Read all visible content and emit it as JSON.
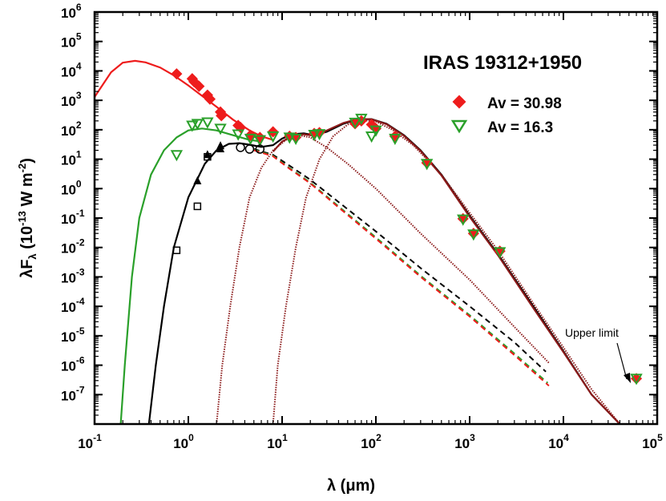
{
  "chart_data": {
    "type": "scatter",
    "title": "IRAS 19312+1950",
    "xlabel": {
      "main": "λ (",
      "mu": "μ",
      "unit": "m)"
    },
    "ylabel": {
      "lam": "λ",
      "F": "F",
      "sub": "λ",
      "open": " (10",
      "exp": "-13",
      "unit": " W m",
      "exp2": "-2",
      "close": ")"
    },
    "x_scale": "log",
    "y_scale": "log",
    "xlim": [
      0.1,
      100000
    ],
    "ylim": [
      1e-08,
      1000000
    ],
    "x_ticks": [
      {
        "base": "10",
        "exp": "-1",
        "value": 0.1
      },
      {
        "base": "10",
        "exp": "0",
        "value": 1
      },
      {
        "base": "10",
        "exp": "1",
        "value": 10
      },
      {
        "base": "10",
        "exp": "2",
        "value": 100
      },
      {
        "base": "10",
        "exp": "3",
        "value": 1000
      },
      {
        "base": "10",
        "exp": "4",
        "value": 10000
      },
      {
        "base": "10",
        "exp": "5",
        "value": 100000
      }
    ],
    "y_ticks": [
      {
        "base": "10",
        "exp": "-7",
        "value": 1e-07
      },
      {
        "base": "10",
        "exp": "-6",
        "value": 1e-06
      },
      {
        "base": "10",
        "exp": "-5",
        "value": 1e-05
      },
      {
        "base": "10",
        "exp": "-4",
        "value": 0.0001
      },
      {
        "base": "10",
        "exp": "-3",
        "value": 0.001
      },
      {
        "base": "10",
        "exp": "-2",
        "value": 0.01
      },
      {
        "base": "10",
        "exp": "-1",
        "value": 0.1
      },
      {
        "base": "10",
        "exp": "0",
        "value": 1
      },
      {
        "base": "10",
        "exp": "1",
        "value": 10
      },
      {
        "base": "10",
        "exp": "2",
        "value": 100
      },
      {
        "base": "10",
        "exp": "3",
        "value": 1000
      },
      {
        "base": "10",
        "exp": "4",
        "value": 10000
      },
      {
        "base": "10",
        "exp": "5",
        "value": 100000
      },
      {
        "base": "10",
        "exp": "6",
        "value": 1000000
      }
    ],
    "legend": {
      "placement": "top-right",
      "entries": [
        {
          "label": "Av = 30.98",
          "marker": "diamond",
          "color": "#ee1c1c"
        },
        {
          "label": "Av = 16.3",
          "marker": "triangle-down-open",
          "color": "#2aa02a"
        }
      ]
    },
    "annotation": {
      "text": "Upper limit",
      "points_to": [
        60000,
        3.5e-07
      ]
    },
    "series": [
      {
        "name": "Av = 30.98",
        "color": "#ee1c1c",
        "marker": "diamond",
        "points": [
          [
            0.75,
            7900
          ],
          [
            1.1,
            5400
          ],
          [
            1.15,
            4300
          ],
          [
            1.3,
            3000
          ],
          [
            1.6,
            1500
          ],
          [
            1.7,
            1100
          ],
          [
            2.2,
            400
          ],
          [
            2.25,
            300
          ],
          [
            3.4,
            140
          ],
          [
            3.6,
            120
          ],
          [
            4.6,
            65
          ],
          [
            5.8,
            55
          ],
          [
            8.0,
            85
          ],
          [
            12,
            60
          ],
          [
            14,
            55
          ],
          [
            22,
            75
          ],
          [
            25,
            80
          ],
          [
            60,
            160
          ],
          [
            70,
            200
          ],
          [
            90,
            150
          ],
          [
            100,
            110
          ],
          [
            160,
            60
          ],
          [
            350,
            7.5
          ],
          [
            850,
            0.095
          ],
          [
            1100,
            0.03
          ],
          [
            2100,
            0.0075
          ],
          [
            60000,
            3.5e-07
          ]
        ]
      },
      {
        "name": "Av = 16.3",
        "color": "#2aa02a",
        "marker": "triangle-down-open",
        "points": [
          [
            0.75,
            14
          ],
          [
            1.1,
            140
          ],
          [
            1.25,
            160
          ],
          [
            1.6,
            180
          ],
          [
            2.2,
            110
          ],
          [
            3.4,
            70
          ],
          [
            4.6,
            50
          ],
          [
            5.8,
            45
          ],
          [
            8.0,
            60
          ],
          [
            12,
            55
          ],
          [
            14,
            50
          ],
          [
            22,
            68
          ],
          [
            25,
            72
          ],
          [
            60,
            175
          ],
          [
            70,
            240
          ],
          [
            90,
            60
          ],
          [
            100,
            95
          ],
          [
            160,
            50
          ],
          [
            350,
            7
          ],
          [
            850,
            0.09
          ],
          [
            1100,
            0.028
          ],
          [
            2100,
            0.007
          ],
          [
            60000,
            3.5e-07
          ]
        ]
      },
      {
        "name": "observed",
        "color": "#000000",
        "marker": "mixed-black",
        "points": [
          [
            0.75,
            0.008
          ],
          [
            1.25,
            0.25
          ],
          [
            1.25,
            1.8
          ],
          [
            1.6,
            12
          ],
          [
            1.6,
            14
          ],
          [
            2.2,
            22
          ],
          [
            2.2,
            28
          ],
          [
            3.6,
            25
          ],
          [
            4.5,
            22
          ],
          [
            5.8,
            22
          ]
        ]
      }
    ],
    "model_curves": [
      {
        "name": "red total",
        "color": "#ee1c1c",
        "style": "solid",
        "points": [
          [
            0.1,
            1300
          ],
          [
            0.15,
            9000
          ],
          [
            0.2,
            19000
          ],
          [
            0.27,
            22000
          ],
          [
            0.35,
            19500
          ],
          [
            0.5,
            13000
          ],
          [
            0.7,
            7000
          ],
          [
            1.0,
            3200
          ],
          [
            1.5,
            1200
          ],
          [
            2.0,
            600
          ],
          [
            3.0,
            220
          ],
          [
            4.5,
            95
          ],
          [
            6.0,
            60
          ],
          [
            8.0,
            45
          ]
        ]
      },
      {
        "name": "green total",
        "color": "#2aa02a",
        "style": "solid",
        "points": [
          [
            0.19,
            1e-08
          ],
          [
            0.21,
            1e-06
          ],
          [
            0.25,
            0.001
          ],
          [
            0.3,
            0.1
          ],
          [
            0.4,
            3
          ],
          [
            0.55,
            20
          ],
          [
            0.75,
            55
          ],
          [
            1.0,
            95
          ],
          [
            1.4,
            110
          ],
          [
            2.0,
            95
          ],
          [
            3.0,
            65
          ],
          [
            4.5,
            45
          ],
          [
            6.0,
            40
          ]
        ]
      },
      {
        "name": "black stellar",
        "color": "#000000",
        "style": "solid",
        "points": [
          [
            0.38,
            1e-08
          ],
          [
            0.45,
            1e-06
          ],
          [
            0.55,
            0.0001
          ],
          [
            0.7,
            0.01
          ],
          [
            1.0,
            0.5
          ],
          [
            1.5,
            7
          ],
          [
            2.0,
            20
          ],
          [
            2.7,
            33
          ],
          [
            3.5,
            35
          ],
          [
            4.5,
            31
          ],
          [
            6.0,
            26
          ],
          [
            8.0,
            30
          ],
          [
            10,
            50
          ],
          [
            13,
            70
          ],
          [
            17,
            75
          ],
          [
            22,
            65
          ],
          [
            30,
            85
          ],
          [
            45,
            160
          ],
          [
            65,
            230
          ],
          [
            90,
            230
          ],
          [
            130,
            160
          ],
          [
            200,
            65
          ],
          [
            300,
            20
          ],
          [
            500,
            3
          ],
          [
            1000,
            0.12
          ],
          [
            2000,
            0.006
          ],
          [
            5000,
            8e-05
          ],
          [
            10000,
            3e-06
          ],
          [
            20000,
            1e-07
          ],
          [
            40000,
            1e-08
          ]
        ]
      },
      {
        "name": "red-brown hot dust",
        "color": "#8b1a1a",
        "style": "solid",
        "points": [
          [
            8,
            18
          ],
          [
            10,
            40
          ],
          [
            13,
            62
          ],
          [
            17,
            70
          ],
          [
            22,
            62
          ],
          [
            30,
            95
          ],
          [
            45,
            170
          ],
          [
            65,
            235
          ],
          [
            90,
            225
          ],
          [
            130,
            155
          ],
          [
            200,
            62
          ],
          [
            300,
            19
          ],
          [
            500,
            2.8
          ],
          [
            1000,
            0.11
          ],
          [
            2000,
            0.0055
          ],
          [
            5000,
            7e-05
          ],
          [
            10000,
            2.8e-06
          ],
          [
            20000,
            1e-07
          ],
          [
            40000,
            1e-08
          ]
        ]
      },
      {
        "name": "dotted warm dust",
        "color": "#8b1a1a",
        "style": "dotted",
        "points": [
          [
            2.0,
            1e-08
          ],
          [
            2.3,
            1e-06
          ],
          [
            2.8,
            0.0001
          ],
          [
            3.5,
            0.01
          ],
          [
            4.5,
            0.5
          ],
          [
            6.0,
            5
          ],
          [
            8.0,
            20
          ],
          [
            11,
            45
          ],
          [
            15,
            65
          ],
          [
            20,
            55
          ],
          [
            30,
            25
          ],
          [
            50,
            7
          ],
          [
            100,
            1
          ],
          [
            300,
            0.03
          ],
          [
            1000,
            0.0008
          ],
          [
            3000,
            2e-05
          ],
          [
            7000,
            1.2e-06
          ]
        ]
      },
      {
        "name": "dotted cold dust",
        "color": "#8b1a1a",
        "style": "dotted",
        "points": [
          [
            8.0,
            1e-08
          ],
          [
            9.0,
            1e-06
          ],
          [
            11,
            0.0001
          ],
          [
            14,
            0.01
          ],
          [
            18,
            0.5
          ],
          [
            25,
            10
          ],
          [
            35,
            60
          ],
          [
            50,
            150
          ],
          [
            70,
            210
          ],
          [
            100,
            190
          ],
          [
            150,
            100
          ],
          [
            250,
            30
          ],
          [
            500,
            3
          ],
          [
            1000,
            0.15
          ],
          [
            2000,
            0.008
          ],
          [
            5000,
            0.0001
          ],
          [
            10000,
            4e-06
          ],
          [
            20000,
            1.5e-07
          ],
          [
            40000,
            1e-08
          ]
        ]
      },
      {
        "name": "black dashed photosphere",
        "color": "#000000",
        "style": "dashed",
        "points": [
          [
            5,
            22
          ],
          [
            8,
            14
          ],
          [
            12,
            6
          ],
          [
            20,
            2
          ],
          [
            40,
            0.35
          ],
          [
            100,
            0.035
          ],
          [
            300,
            0.002
          ],
          [
            1000,
            0.0001
          ],
          [
            3000,
            6e-06
          ],
          [
            6500,
            6e-07
          ]
        ]
      },
      {
        "name": "green dashed photosphere",
        "color": "#2aa02a",
        "style": "dashed",
        "points": [
          [
            5,
            21
          ],
          [
            8,
            13
          ],
          [
            12,
            5
          ],
          [
            20,
            1.6
          ],
          [
            40,
            0.25
          ],
          [
            100,
            0.022
          ],
          [
            300,
            0.0011
          ],
          [
            1000,
            5e-05
          ],
          [
            3000,
            2.5e-06
          ],
          [
            6800,
            2.5e-07
          ]
        ]
      },
      {
        "name": "red dashed photosphere",
        "color": "#ee1c1c",
        "style": "dashed",
        "points": [
          [
            5,
            20
          ],
          [
            8,
            12.5
          ],
          [
            12,
            4.7
          ],
          [
            20,
            1.5
          ],
          [
            40,
            0.23
          ],
          [
            100,
            0.02
          ],
          [
            300,
            0.001
          ],
          [
            1000,
            4.5e-05
          ],
          [
            3000,
            2.2e-06
          ],
          [
            7000,
            2e-07
          ]
        ]
      }
    ]
  }
}
